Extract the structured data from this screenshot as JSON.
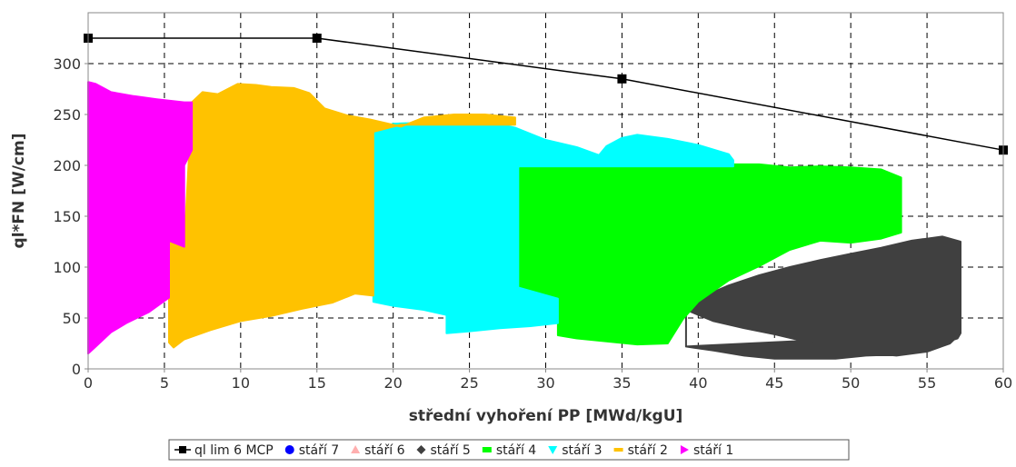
{
  "chart_data": {
    "type": "scatter",
    "xlabel": "střední vyhoření PP [MWd/kgU]",
    "ylabel": "ql*FN [W/cm]",
    "xlim": [
      0,
      60
    ],
    "ylim": [
      0,
      350
    ],
    "xticks": [
      "0",
      "5",
      "10",
      "15",
      "20",
      "25",
      "30",
      "35",
      "40",
      "45",
      "50",
      "55",
      "60"
    ],
    "yticks": [
      "0",
      "50",
      "100",
      "150",
      "200",
      "250",
      "300"
    ],
    "grid": true,
    "legend_position": "bottom-center",
    "series": [
      {
        "name": "ql lim 6 MCP",
        "kind": "line-markers",
        "color": "#000000",
        "points": [
          [
            0,
            325
          ],
          [
            15,
            325
          ],
          [
            35,
            285
          ],
          [
            60,
            215
          ]
        ]
      },
      {
        "name": "stáří 7",
        "kind": "legend-only",
        "color": "#0000ff",
        "marker": "circle"
      },
      {
        "name": "stáří 6",
        "kind": "legend-only",
        "color": "#ffafaf",
        "marker": "triangle-up"
      },
      {
        "name": "stáří 5",
        "kind": "region",
        "color": "#404040",
        "marker": "diamond",
        "outline": [
          [
            39.2,
            58
          ],
          [
            41,
            47
          ],
          [
            43,
            40
          ],
          [
            45,
            34
          ],
          [
            47,
            27
          ],
          [
            49,
            21
          ],
          [
            51,
            16
          ],
          [
            53,
            13
          ],
          [
            55,
            17
          ],
          [
            56.5,
            25
          ],
          [
            57.2,
            35
          ],
          [
            57.2,
            125
          ],
          [
            56,
            130
          ],
          [
            54,
            126
          ],
          [
            52,
            119
          ],
          [
            50,
            113
          ],
          [
            48,
            107
          ],
          [
            46,
            100
          ],
          [
            44,
            92
          ],
          [
            42,
            82
          ],
          [
            40,
            69
          ],
          [
            39.2,
            60
          ],
          [
            39.2,
            22
          ],
          [
            41,
            18
          ],
          [
            43,
            13
          ],
          [
            45,
            10
          ],
          [
            47,
            10
          ],
          [
            49,
            10
          ],
          [
            51,
            13
          ],
          [
            53,
            14
          ],
          [
            55,
            20
          ],
          [
            57,
            30
          ],
          [
            57.2,
            35
          ],
          [
            39.2,
            22
          ]
        ]
      },
      {
        "name": "stáří 4",
        "kind": "region",
        "color": "#00ff00",
        "marker": "square",
        "outline": [
          [
            28.2,
            197
          ],
          [
            30,
            202
          ],
          [
            32,
            206
          ],
          [
            34,
            208
          ],
          [
            36,
            205
          ],
          [
            38,
            201
          ],
          [
            40,
            200
          ],
          [
            42,
            201
          ],
          [
            44,
            201
          ],
          [
            46,
            198
          ],
          [
            48,
            199
          ],
          [
            50,
            198
          ],
          [
            52,
            196
          ],
          [
            53.3,
            188
          ],
          [
            53.3,
            134
          ],
          [
            52,
            128
          ],
          [
            50,
            124
          ],
          [
            48,
            126
          ],
          [
            46,
            117
          ],
          [
            44,
            101
          ],
          [
            42,
            87
          ],
          [
            40,
            66
          ],
          [
            39,
            49
          ],
          [
            38,
            25
          ],
          [
            36,
            24
          ],
          [
            34,
            27
          ],
          [
            32,
            30
          ],
          [
            30.8,
            33
          ],
          [
            30.8,
            69
          ],
          [
            29,
            74
          ],
          [
            28.2,
            80
          ]
        ]
      },
      {
        "name": "stáří 3",
        "kind": "region",
        "color": "#00ffff",
        "marker": "triangle-down",
        "outline": [
          [
            18.7,
            233
          ],
          [
            20,
            241
          ],
          [
            22,
            242
          ],
          [
            24,
            243
          ],
          [
            26,
            244
          ],
          [
            28,
            237
          ],
          [
            30,
            225
          ],
          [
            32,
            218
          ],
          [
            33.5,
            210
          ],
          [
            34,
            219
          ],
          [
            35,
            227
          ],
          [
            36,
            230
          ],
          [
            38,
            226
          ],
          [
            40,
            220
          ],
          [
            42,
            211
          ],
          [
            42.3,
            205
          ],
          [
            42.3,
            199
          ],
          [
            28.2,
            199
          ],
          [
            28.2,
            80
          ],
          [
            30.8,
            69
          ],
          [
            30.8,
            45
          ],
          [
            29,
            42
          ],
          [
            27,
            40
          ],
          [
            25,
            37
          ],
          [
            23.5,
            35
          ],
          [
            23.5,
            53
          ],
          [
            22,
            58
          ],
          [
            20,
            62
          ],
          [
            18.7,
            66
          ]
        ]
      },
      {
        "name": "stáří 2",
        "kind": "region",
        "color": "#ffc200",
        "marker": "dash",
        "outline": [
          [
            5.3,
            126
          ],
          [
            6.3,
            120
          ],
          [
            6.8,
            262
          ],
          [
            7.5,
            272
          ],
          [
            8.5,
            270
          ],
          [
            9.8,
            280
          ],
          [
            11,
            279
          ],
          [
            12,
            277
          ],
          [
            13.5,
            276
          ],
          [
            14.5,
            271
          ],
          [
            15.5,
            256
          ],
          [
            17,
            249
          ],
          [
            18.5,
            245
          ],
          [
            20.5,
            238
          ],
          [
            22,
            247
          ],
          [
            24,
            250
          ],
          [
            26,
            250
          ],
          [
            28,
            247
          ],
          [
            28,
            240
          ],
          [
            20.5,
            240
          ],
          [
            18.7,
            233
          ],
          [
            18.7,
            72
          ],
          [
            17.5,
            74
          ],
          [
            16,
            65
          ],
          [
            14,
            59
          ],
          [
            12,
            52
          ],
          [
            10,
            47
          ],
          [
            8,
            38
          ],
          [
            6.3,
            29
          ],
          [
            5.6,
            21
          ],
          [
            5.3,
            26
          ]
        ]
      },
      {
        "name": "stáří 1",
        "kind": "region",
        "color": "#ff00ff",
        "marker": "triangle-right",
        "outline": [
          [
            0,
            282
          ],
          [
            0.5,
            280
          ],
          [
            1.5,
            272
          ],
          [
            3,
            268
          ],
          [
            4.5,
            265
          ],
          [
            6.3,
            262
          ],
          [
            6.8,
            262
          ],
          [
            6.8,
            215
          ],
          [
            6.3,
            200
          ],
          [
            6.3,
            120
          ],
          [
            5.3,
            126
          ],
          [
            5.3,
            70
          ],
          [
            4,
            56
          ],
          [
            2.5,
            45
          ],
          [
            1.5,
            36
          ],
          [
            0.5,
            22
          ],
          [
            0,
            15
          ]
        ]
      }
    ]
  }
}
